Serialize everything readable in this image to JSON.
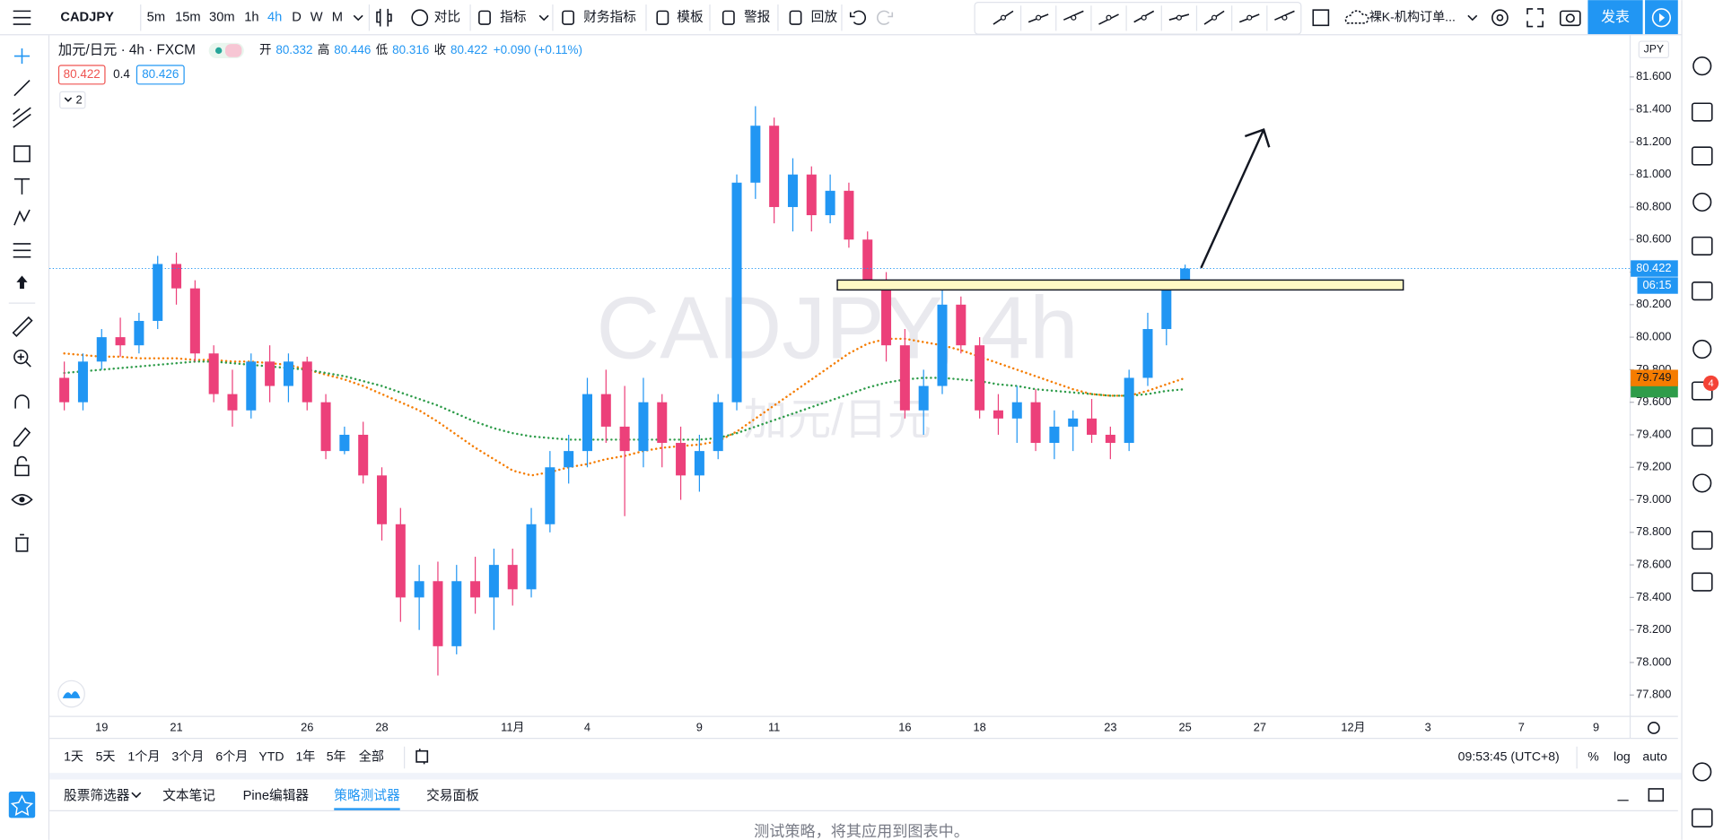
{
  "toolbar": {
    "symbol": "CADJPY",
    "intervals": [
      "5m",
      "15m",
      "30m",
      "1h",
      "4h",
      "D",
      "W",
      "M"
    ],
    "active_interval": "4h",
    "buttons": [
      "对比",
      "指标",
      "财务指标",
      "模板",
      "警报",
      "回放"
    ],
    "layout_name": "裸K-机构订单...",
    "publish": "发表"
  },
  "legend": {
    "title": "加元/日元 · 4h · FXCM",
    "open_label": "开",
    "high_label": "高",
    "low_label": "低",
    "close_label": "收",
    "change": "+0.090 (+0.11%)",
    "bid": "80.422",
    "spread": "0.4",
    "ask": "80.426",
    "collapsed_count": "2"
  },
  "chart_data": {
    "type": "candlestick",
    "currency": "JPY",
    "watermark": "CADJPY, 4h",
    "watermark_sub": "加元/日元",
    "up_color": "#2196f3",
    "down_color": "#ec407a",
    "grid": false,
    "categories": [
      null,
      null,
      "19",
      null,
      null,
      null,
      "21",
      null,
      null,
      null,
      null,
      null,
      null,
      "26",
      null,
      null,
      null,
      "28",
      null,
      null,
      null,
      null,
      null,
      null,
      "11月",
      null,
      null,
      null,
      "4",
      null,
      null,
      null,
      null,
      null,
      "9",
      null,
      null,
      null,
      "11",
      null,
      null,
      null,
      null,
      null,
      null,
      "16",
      null,
      null,
      null,
      "18",
      null,
      null,
      null,
      null,
      null,
      null,
      "23",
      null,
      null,
      null,
      "25",
      null,
      null,
      null,
      "27",
      null,
      null,
      null,
      null,
      "12月",
      null,
      null,
      null,
      "3",
      null,
      null,
      null,
      null,
      "7",
      null,
      null,
      null,
      "9",
      null
    ],
    "open": [
      79.75,
      79.6,
      79.85,
      80,
      79.95,
      80.1,
      80.45,
      80.3,
      79.9,
      79.65,
      79.55,
      79.85,
      79.7,
      79.85,
      79.6,
      79.3,
      79.4,
      79.15,
      78.85,
      78.4,
      78.5,
      78.1,
      78.5,
      78.4,
      78.6,
      78.45,
      78.85,
      79.2,
      79.3,
      79.65,
      79.45,
      79.3,
      79.6,
      79.35,
      79.15,
      79.3,
      79.6,
      80.95,
      81.3,
      80.8,
      81,
      80.75,
      80.9,
      80.6,
      80.35,
      79.95,
      79.55,
      79.7,
      80.2,
      79.95,
      79.55,
      79.5,
      79.6,
      79.35,
      79.45,
      79.5,
      79.4,
      79.35,
      79.75,
      80.05,
      80.332,
      null,
      null,
      null,
      null,
      null,
      null,
      null,
      null,
      null,
      null,
      null,
      null,
      null,
      null,
      null,
      null,
      null,
      null,
      null,
      null,
      null,
      null,
      null
    ],
    "high": [
      79.85,
      79.9,
      80.05,
      80.12,
      80.15,
      80.5,
      80.52,
      80.35,
      79.95,
      79.8,
      79.9,
      79.95,
      79.9,
      79.88,
      79.65,
      79.45,
      79.48,
      79.2,
      78.95,
      78.6,
      78.62,
      78.6,
      78.65,
      78.7,
      78.7,
      78.95,
      79.3,
      79.4,
      79.75,
      79.8,
      79.7,
      79.75,
      79.65,
      79.45,
      79.4,
      79.65,
      81,
      81.42,
      81.35,
      81.1,
      81.05,
      81,
      80.95,
      80.65,
      80.4,
      80.05,
      79.8,
      80.35,
      80.25,
      80,
      79.65,
      79.7,
      79.68,
      79.55,
      79.55,
      79.62,
      79.45,
      79.8,
      80.15,
      80.35,
      80.446,
      null,
      null,
      null,
      null,
      null,
      null,
      null,
      null,
      null,
      null,
      null,
      null,
      null,
      null,
      null,
      null,
      null,
      null,
      null,
      null,
      null,
      null,
      null
    ],
    "low": [
      79.55,
      79.55,
      79.8,
      79.88,
      79.9,
      80.05,
      80.2,
      79.85,
      79.6,
      79.45,
      79.5,
      79.6,
      79.6,
      79.55,
      79.25,
      79.28,
      79.1,
      78.75,
      78.25,
      78.2,
      77.92,
      78.05,
      78.3,
      78.2,
      78.35,
      78.4,
      78.8,
      79.1,
      79.2,
      79.35,
      78.9,
      79.2,
      79.2,
      79,
      79.05,
      79.25,
      79.55,
      80.85,
      80.7,
      80.65,
      80.65,
      80.7,
      80.55,
      80.3,
      79.85,
      79.5,
      79.4,
      79.65,
      79.9,
      79.5,
      79.4,
      79.35,
      79.3,
      79.25,
      79.3,
      79.35,
      79.25,
      79.3,
      79.7,
      79.95,
      80.316,
      null,
      null,
      null,
      null,
      null,
      null,
      null,
      null,
      null,
      null,
      null,
      null,
      null,
      null,
      null,
      null,
      null,
      null,
      null,
      null,
      null,
      null,
      null
    ],
    "close": [
      79.6,
      79.85,
      80,
      79.95,
      80.1,
      80.45,
      80.3,
      79.9,
      79.65,
      79.55,
      79.85,
      79.7,
      79.85,
      79.6,
      79.3,
      79.4,
      79.15,
      78.85,
      78.4,
      78.5,
      78.1,
      78.5,
      78.4,
      78.6,
      78.45,
      78.85,
      79.2,
      79.3,
      79.65,
      79.45,
      79.3,
      79.6,
      79.35,
      79.15,
      79.3,
      79.6,
      80.95,
      81.3,
      80.8,
      81,
      80.75,
      80.9,
      80.6,
      80.35,
      79.95,
      79.55,
      79.7,
      80.2,
      79.95,
      79.55,
      79.5,
      79.6,
      79.35,
      79.45,
      79.5,
      79.4,
      79.35,
      79.75,
      80.05,
      80.3,
      80.422,
      null,
      null,
      null,
      null,
      null,
      null,
      null,
      null,
      null,
      null,
      null,
      null,
      null,
      null,
      null,
      null,
      null,
      null,
      null,
      null,
      null,
      null,
      null
    ],
    "lines": [
      {
        "color": "#f57c00",
        "values": [
          79.9,
          79.89,
          79.88,
          79.88,
          79.87,
          79.87,
          79.87,
          79.86,
          79.86,
          79.85,
          79.85,
          79.84,
          79.83,
          79.8,
          79.77,
          79.74,
          79.7,
          79.65,
          79.6,
          79.55,
          79.48,
          79.4,
          79.32,
          79.25,
          79.18,
          79.15,
          79.17,
          79.2,
          79.22,
          79.25,
          79.27,
          79.3,
          79.32,
          79.33,
          79.34,
          79.36,
          79.42,
          79.5,
          79.58,
          79.66,
          79.74,
          79.82,
          79.9,
          79.96,
          79.99,
          79.99,
          79.97,
          79.95,
          79.92,
          79.88,
          79.84,
          79.8,
          79.76,
          79.72,
          79.68,
          79.65,
          79.64,
          79.64,
          79.67,
          79.71,
          79.749,
          null,
          null,
          null,
          null,
          null,
          null,
          null,
          null,
          null,
          null,
          null,
          null,
          null,
          null,
          null,
          null,
          null,
          null,
          null,
          null,
          null,
          null,
          null
        ]
      },
      {
        "color": "#2e9c4a",
        "values": [
          79.78,
          79.79,
          79.8,
          79.81,
          79.82,
          79.83,
          79.84,
          79.85,
          79.85,
          79.84,
          79.83,
          79.82,
          79.81,
          79.8,
          79.78,
          79.76,
          79.73,
          79.7,
          79.66,
          79.62,
          79.58,
          79.53,
          79.48,
          79.44,
          79.41,
          79.39,
          79.38,
          79.37,
          79.37,
          79.37,
          79.37,
          79.37,
          79.37,
          79.37,
          79.37,
          79.38,
          79.41,
          79.45,
          79.49,
          79.53,
          79.57,
          79.61,
          79.65,
          79.69,
          79.72,
          79.74,
          79.75,
          79.75,
          79.74,
          79.73,
          79.71,
          79.7,
          79.68,
          79.67,
          79.66,
          79.65,
          79.64,
          79.64,
          79.65,
          79.67,
          79.68,
          null,
          null,
          null,
          null,
          null,
          null,
          null,
          null,
          null,
          null,
          null,
          null,
          null,
          null,
          null,
          null,
          null,
          null,
          null,
          null,
          null,
          null,
          null
        ]
      }
    ],
    "ylim": [
      77.672,
      81.809
    ],
    "yticks": [
      {
        "value": 81.6,
        "label": "81.600"
      },
      {
        "value": 81.4,
        "label": "81.400"
      },
      {
        "value": 81.2,
        "label": "81.200"
      },
      {
        "value": 81,
        "label": "81.000"
      },
      {
        "value": 80.8,
        "label": "80.800"
      },
      {
        "value": 80.6,
        "label": "80.600"
      },
      {
        "value": 80.4,
        "label": "80.400"
      },
      {
        "value": 80.2,
        "label": "80.200"
      },
      {
        "value": 80,
        "label": "80.000"
      },
      {
        "value": 79.8,
        "label": "79.800"
      },
      {
        "value": 79.6,
        "label": "79.600"
      },
      {
        "value": 79.4,
        "label": "79.400"
      },
      {
        "value": 79.2,
        "label": "79.200"
      },
      {
        "value": 79,
        "label": "79.000"
      },
      {
        "value": 78.8,
        "label": "78.800"
      },
      {
        "value": 78.6,
        "label": "78.600"
      },
      {
        "value": 78.4,
        "label": "78.400"
      },
      {
        "value": 78.2,
        "label": "78.200"
      },
      {
        "value": 78,
        "label": "78.000"
      },
      {
        "value": 77.8,
        "label": "77.800"
      }
    ],
    "countdown": "06:15"
  },
  "range_bar": {
    "ranges": [
      "1天",
      "5天",
      "1个月",
      "3个月",
      "6个月",
      "YTD",
      "1年",
      "5年",
      "全部"
    ],
    "clock": "09:53:45 (UTC+8)",
    "percent": "%",
    "log": "log",
    "auto": "auto"
  },
  "bottom_panel": {
    "tabs": [
      "股票筛选器",
      "文本笔记",
      "Pine编辑器",
      "策略测试器",
      "交易面板"
    ],
    "active_tab": "策略测试器",
    "message": "测试策略，将其应用到图表中。"
  },
  "sidebar": {
    "notification_count": "4"
  }
}
